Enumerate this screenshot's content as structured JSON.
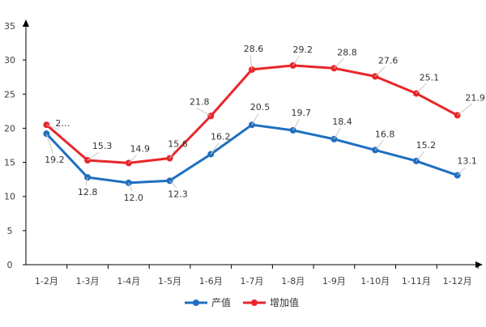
{
  "chart_data": {
    "type": "line",
    "categories": [
      "1-2月",
      "1-3月",
      "1-4月",
      "1-5月",
      "1-6月",
      "1-7月",
      "1-8月",
      "1-9月",
      "1-10月",
      "1-11月",
      "1-12月"
    ],
    "series": [
      {
        "name": "产值",
        "color": "#1f6fbf",
        "values": [
          19.2,
          12.8,
          12.0,
          12.3,
          16.2,
          20.5,
          19.7,
          18.4,
          16.8,
          15.2,
          13.1
        ],
        "labels": [
          "19.2",
          "12.8",
          "12.0",
          "12.3",
          "16.2",
          "20.5",
          "19.7",
          "18.4",
          "16.8",
          "15.2",
          "13.1"
        ]
      },
      {
        "name": "增加值",
        "color": "#e8262a",
        "values": [
          20.5,
          15.3,
          14.9,
          15.6,
          21.8,
          28.6,
          29.2,
          28.8,
          27.6,
          25.1,
          21.9
        ],
        "labels": [
          "2…",
          "15.3",
          "14.9",
          "15.6",
          "21.8",
          "28.6",
          "29.2",
          "28.8",
          "27.6",
          "25.1",
          "21.9"
        ]
      }
    ],
    "yticks": [
      "0",
      "5",
      "10",
      "15",
      "20",
      "25",
      "30",
      "35"
    ],
    "ylim": [
      0,
      35
    ],
    "grid": false,
    "legend_position": "bottom",
    "title": "",
    "xlabel": "",
    "ylabel": ""
  }
}
